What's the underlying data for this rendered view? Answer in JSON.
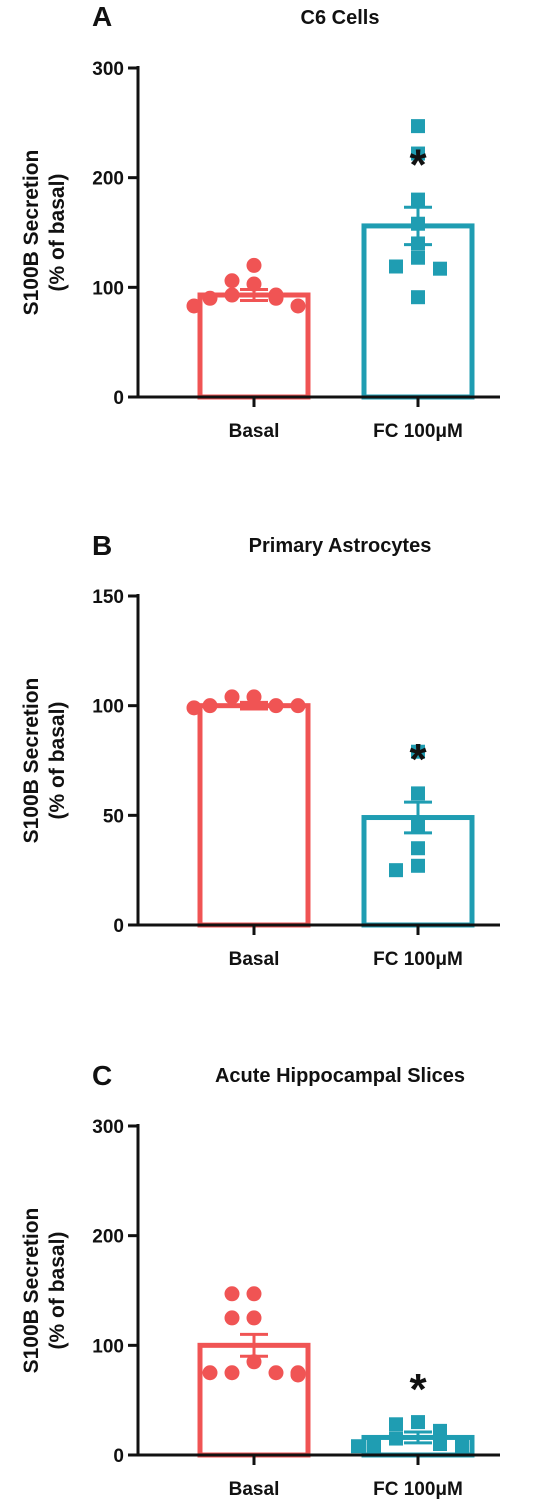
{
  "colors": {
    "basal": "#f05454",
    "fc": "#1f9db2",
    "axis": "#111111"
  },
  "chart_data": [
    {
      "type": "bar",
      "panel": "A",
      "title": "C6 Cells",
      "ylabel_line1": "S100B Secretion",
      "ylabel_line2": "(% of basal)",
      "categories": [
        "Basal",
        "FC 100μM"
      ],
      "values": [
        93,
        156
      ],
      "sem": [
        5,
        17
      ],
      "yticks": [
        "0",
        "100",
        "200",
        "300"
      ],
      "ylim": [
        0,
        300
      ],
      "points": [
        [
          120,
          103,
          106,
          93,
          93,
          90,
          90,
          83,
          83
        ],
        [
          247,
          222,
          180,
          158,
          140,
          127,
          119,
          117,
          91
        ]
      ],
      "significance": "*"
    },
    {
      "type": "bar",
      "panel": "B",
      "title": "Primary Astrocytes",
      "ylabel_line1": "S100B Secretion",
      "ylabel_line2": "(% of basal)",
      "categories": [
        "Basal",
        "FC 100μM"
      ],
      "values": [
        100,
        49
      ],
      "sem": [
        1.5,
        7
      ],
      "yticks": [
        "0",
        "50",
        "100",
        "150"
      ],
      "ylim": [
        0,
        150
      ],
      "points": [
        [
          104,
          104,
          100,
          100,
          100,
          99
        ],
        [
          79,
          60,
          45,
          35,
          27,
          25
        ]
      ],
      "significance": "*"
    },
    {
      "type": "bar",
      "panel": "C",
      "title": "Acute Hippocampal Slices",
      "ylabel_line1": "S100B Secretion",
      "ylabel_line2": "(% of basal)",
      "categories": [
        "Basal",
        "FC 100μM"
      ],
      "values": [
        100,
        16
      ],
      "sem": [
        10,
        5
      ],
      "yticks": [
        "0",
        "100",
        "200",
        "300"
      ],
      "ylim": [
        0,
        300
      ],
      "points": [
        [
          147,
          147,
          125,
          125,
          85,
          75,
          75,
          75,
          75,
          73
        ],
        [
          30,
          28,
          22,
          15,
          12,
          10,
          8,
          8,
          8
        ]
      ],
      "significance": "*"
    }
  ]
}
